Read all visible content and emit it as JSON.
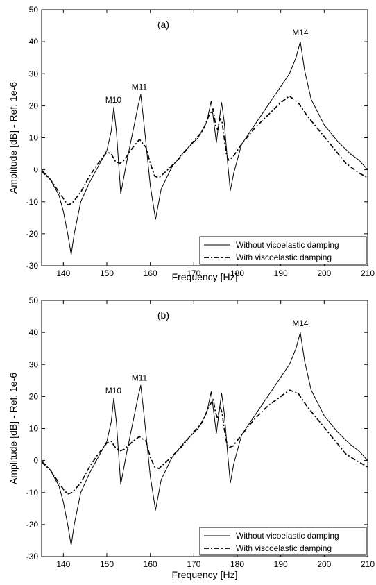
{
  "chart_data": [
    {
      "type": "line",
      "panel_label": "(a)",
      "xlabel": "Frequency [Hz]",
      "ylabel": "Amplitude [dB] - Ref. 1e-6",
      "xlim": [
        135,
        210
      ],
      "ylim": [
        -30,
        50
      ],
      "xticks": [
        140,
        150,
        160,
        170,
        180,
        190,
        200,
        210
      ],
      "yticks": [
        -30,
        -20,
        -10,
        0,
        10,
        20,
        30,
        40,
        50
      ],
      "grid": false,
      "legend": "bottom-right",
      "annotations": [
        {
          "text": "M10",
          "x": 151.5,
          "y": 21
        },
        {
          "text": "M11",
          "x": 157.5,
          "y": 25
        },
        {
          "text": "M14",
          "x": 194.5,
          "y": 42
        }
      ],
      "series": [
        {
          "name": "Without vicoelastic damping",
          "style": "solid",
          "x": [
            135,
            137,
            139,
            140,
            141,
            141.8,
            142.5,
            144,
            146,
            148,
            150,
            151,
            151.6,
            152.2,
            153.2,
            154.5,
            156,
            157.2,
            157.8,
            158.5,
            160,
            161.2,
            162.5,
            165,
            168,
            171,
            173,
            174,
            174.6,
            175.2,
            175.8,
            176.4,
            177,
            177.8,
            178.4,
            179.2,
            181,
            184,
            187,
            190,
            192,
            193.5,
            194.5,
            195.5,
            197,
            200,
            203,
            206,
            208,
            210
          ],
          "y": [
            0,
            -3,
            -8,
            -13,
            -20,
            -26.5,
            -20,
            -10,
            -4,
            1,
            6,
            12,
            19.5,
            12,
            -7.5,
            2,
            12,
            20,
            23.5,
            15,
            -5,
            -15.5,
            -6,
            1,
            6,
            10,
            15,
            21.5,
            15,
            8.5,
            15,
            21,
            15,
            2,
            -6.5,
            -1,
            8,
            14,
            20,
            26,
            30,
            35,
            40,
            31,
            22,
            14,
            9,
            5,
            3,
            0
          ]
        },
        {
          "name": "With viscoelastic damping",
          "style": "dashdot",
          "x": [
            135,
            137,
            139,
            140,
            141,
            142,
            144,
            146,
            148,
            150,
            151,
            152,
            153,
            154,
            156,
            157.5,
            159,
            160,
            161,
            162,
            164,
            167,
            170,
            172,
            173.5,
            174.5,
            175,
            175.5,
            176,
            176.5,
            177,
            177.5,
            178,
            179,
            181,
            184,
            187,
            190,
            192,
            194,
            196,
            199,
            202,
            205,
            208,
            210
          ],
          "y": [
            -0.5,
            -3,
            -7,
            -9,
            -11,
            -10.5,
            -7,
            -2,
            2,
            5.5,
            5,
            2.5,
            2,
            3,
            7,
            9.5,
            7,
            2,
            -2,
            -2.5,
            0,
            4,
            9,
            12,
            17,
            19,
            14,
            12.5,
            16,
            15,
            10,
            5,
            3,
            4,
            8,
            13,
            17,
            21,
            23,
            21,
            17,
            12,
            7,
            2,
            -1,
            -2.5
          ]
        }
      ]
    },
    {
      "type": "line",
      "panel_label": "(b)",
      "xlabel": "Frequency [Hz]",
      "ylabel": "Amplitude [dB] - Ref. 1e-6",
      "xlim": [
        135,
        210
      ],
      "ylim": [
        -30,
        50
      ],
      "xticks": [
        140,
        150,
        160,
        170,
        180,
        190,
        200,
        210
      ],
      "yticks": [
        -30,
        -20,
        -10,
        0,
        10,
        20,
        30,
        40,
        50
      ],
      "grid": false,
      "legend": "bottom-right",
      "annotations": [
        {
          "text": "M10",
          "x": 151.5,
          "y": 21
        },
        {
          "text": "M11",
          "x": 157.5,
          "y": 25
        },
        {
          "text": "M14",
          "x": 194.5,
          "y": 42
        }
      ],
      "series": [
        {
          "name": "Without vicoelastic damping",
          "style": "solid",
          "x": [
            135,
            137,
            139,
            140,
            141,
            141.8,
            142.5,
            144,
            146,
            148,
            150,
            151,
            151.6,
            152.2,
            153.2,
            154.5,
            156,
            157.2,
            157.8,
            158.5,
            160,
            161.2,
            162.5,
            165,
            168,
            171,
            173,
            174,
            174.6,
            175.2,
            175.8,
            176.4,
            177,
            177.8,
            178.4,
            179.2,
            181,
            184,
            187,
            190,
            192,
            193.5,
            194.5,
            195.5,
            197,
            200,
            203,
            206,
            208,
            210
          ],
          "y": [
            0,
            -3,
            -8,
            -13,
            -20,
            -26.5,
            -20,
            -10,
            -4,
            1,
            6,
            12,
            19.5,
            12,
            -7.5,
            2,
            12,
            20,
            23.5,
            15,
            -5,
            -15.5,
            -6,
            1,
            6,
            10,
            15,
            21.5,
            15,
            8.5,
            15,
            21,
            15,
            2,
            -7,
            -1,
            8,
            14,
            20,
            26,
            30,
            35,
            40,
            31,
            22,
            14,
            9,
            5,
            3,
            0
          ]
        },
        {
          "name": "With viscoelastic damping",
          "style": "dashdot",
          "x": [
            135,
            137,
            139,
            140,
            141,
            142,
            144,
            146,
            148,
            150,
            151,
            152,
            153,
            154,
            156,
            157.5,
            159,
            160,
            161,
            162,
            164,
            167,
            170,
            172,
            173.5,
            174.5,
            175,
            175.5,
            176,
            176.5,
            177,
            177.5,
            178,
            179,
            181,
            184,
            187,
            190,
            192,
            194,
            196,
            199,
            202,
            205,
            208,
            210
          ],
          "y": [
            -0.5,
            -3,
            -7,
            -9,
            -10.5,
            -10,
            -7,
            -2,
            2,
            5.5,
            6,
            4,
            3,
            3.5,
            6,
            7.5,
            6,
            1,
            -2,
            -2.5,
            0,
            4,
            9,
            12,
            17,
            19,
            15,
            13,
            17,
            15,
            10,
            6,
            4,
            4.5,
            8,
            13,
            17,
            20,
            22,
            21,
            17,
            12,
            7,
            2,
            -0.5,
            -2
          ]
        }
      ]
    }
  ]
}
